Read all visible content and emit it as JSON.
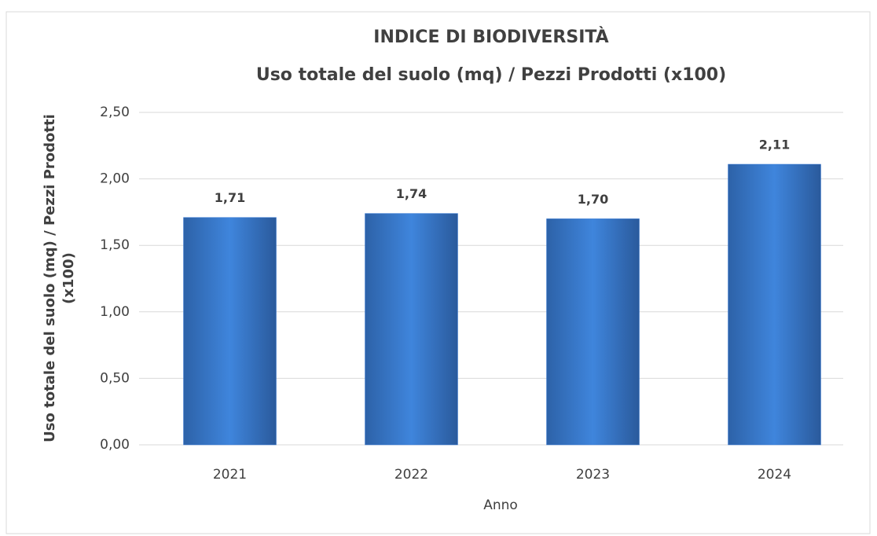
{
  "chart_data": {
    "type": "bar",
    "title": "INDICE DI BIODIVERSITÀ",
    "subtitle": "Uso totale del suolo (mq) / Pezzi Prodotti (x100)",
    "x_label": "Anno",
    "y_label": [
      "Uso totale del suolo (mq) / Pezzi Prodotti",
      "(x100)"
    ],
    "categories": [
      "2021",
      "2022",
      "2023",
      "2024"
    ],
    "values": [
      1.71,
      1.74,
      1.7,
      2.11
    ],
    "value_labels": [
      "1,71",
      "1,74",
      "1,70",
      "2,11"
    ],
    "color": "#3a7bd5",
    "ylim": [
      0,
      2.5
    ],
    "yticks": [
      {
        "value": 0,
        "label": "0,00"
      },
      {
        "value": 0.5,
        "label": "0,50"
      },
      {
        "value": 1,
        "label": "1,00"
      },
      {
        "value": 1.5,
        "label": "1,50"
      },
      {
        "value": 2,
        "label": "2,00"
      },
      {
        "value": 2.5,
        "label": "2,50"
      }
    ],
    "grid": true
  }
}
